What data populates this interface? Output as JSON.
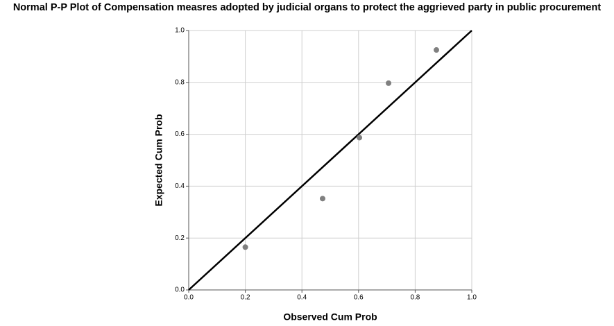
{
  "chart_data": {
    "type": "scatter",
    "title": "Normal P-P Plot of Compensation measres adopted by judicial organs to protect the aggrieved party in public procurement",
    "x_label": "Observed Cum Prob",
    "y_label": "Expected Cum Prob",
    "x": [
      0.2,
      0.473,
      0.603,
      0.706,
      0.875
    ],
    "values": [
      0.165,
      0.352,
      0.587,
      0.797,
      0.925
    ],
    "color": "#808080",
    "xlim": [
      0,
      1
    ],
    "ylim": [
      0,
      1
    ],
    "xticks": [
      {
        "value": 0,
        "label": "0.0"
      },
      0.2,
      0.4,
      0.6,
      0.8,
      {
        "value": 1,
        "label": "1.0"
      }
    ],
    "yticks": [
      {
        "value": 0,
        "label": "0.0"
      },
      0.2,
      0.4,
      0.6,
      0.8,
      {
        "value": 1,
        "label": "1.0"
      }
    ],
    "grid": true,
    "diagonal_line": true
  }
}
